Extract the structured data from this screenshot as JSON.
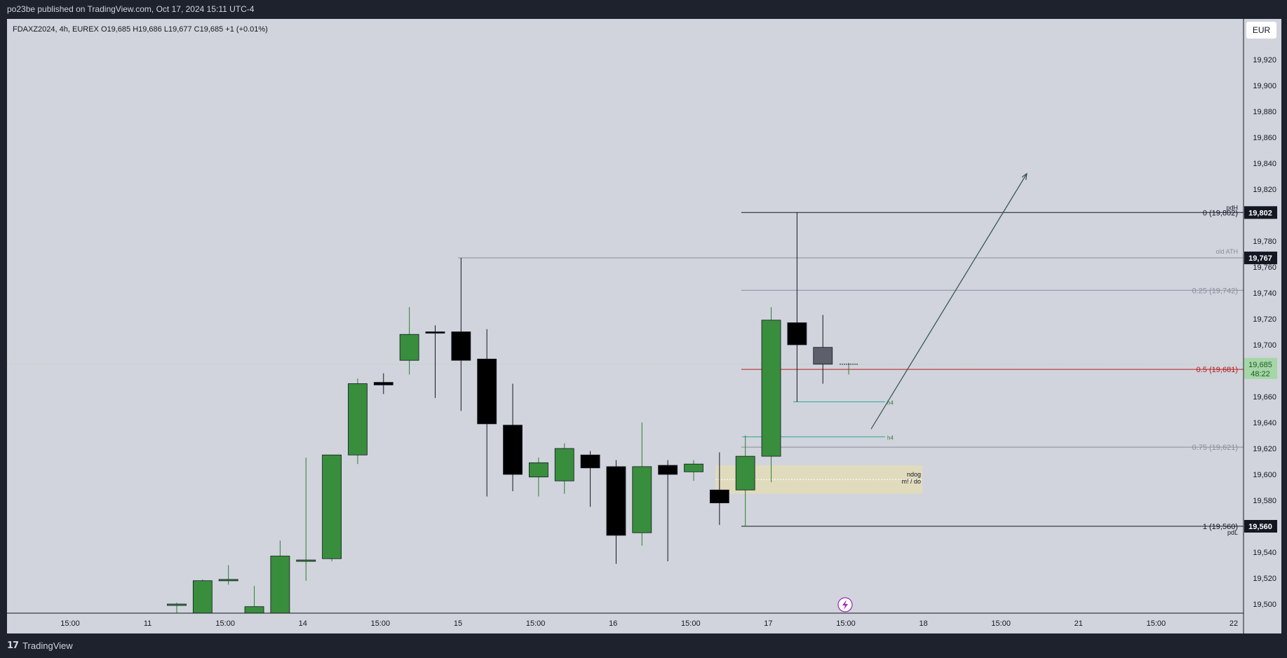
{
  "header": {
    "published_text": "po23be published on TradingView.com, Oct 17, 2024 15:11 UTC-4"
  },
  "footer": {
    "brand": "TradingView",
    "brand_icon": "tradingview-logo-icon"
  },
  "symbol_bar": {
    "text": "FDAXZ2024, 4h, EUREX  O19,685  H19,686  L19,677  C19,685  +1 (+0.01%)"
  },
  "currency": "EUR",
  "colors": {
    "up": "#388e3c",
    "down": "#000000",
    "current": "#5d606b",
    "fib_mid": "#b71c1c",
    "level_line": "#131722",
    "gray_line": "#8a8e99",
    "teal": "#26a69a",
    "fvg_box": "#e4dcb8",
    "arrow": "#2f4f4f",
    "price_up_bg": "#a5d6a7"
  },
  "chart_data": {
    "type": "candlestick",
    "timeframe": "4h",
    "symbol": "FDAXZ2024",
    "y_axis": {
      "min": 19490,
      "max": 19945,
      "ticks": [
        "19,500",
        "19,520",
        "19,540",
        "19,560",
        "19,580",
        "19,600",
        "19,620",
        "19,640",
        "19,660",
        "19,680",
        "19,700",
        "19,720",
        "19,740",
        "19,760",
        "19,780",
        "19,800",
        "19,820",
        "19,840",
        "19,860",
        "19,880",
        "19,900",
        "19,920"
      ]
    },
    "x_axis": {
      "tick_labels": [
        "15:00",
        "11",
        "15:00",
        "14",
        "15:00",
        "15",
        "15:00",
        "16",
        "15:00",
        "17",
        "15:00",
        "18",
        "15:00",
        "21",
        "15:00",
        "22"
      ]
    },
    "candles": [
      {
        "o": 19500,
        "h": 19501,
        "l": 19490,
        "c": 19500
      },
      {
        "o": 19493,
        "h": 19519,
        "l": 19489,
        "c": 19518
      },
      {
        "o": 19519,
        "h": 19530,
        "l": 19515,
        "c": 19519
      },
      {
        "o": 19493,
        "h": 19514,
        "l": 19488,
        "c": 19498
      },
      {
        "o": 19493,
        "h": 19549,
        "l": 19493,
        "c": 19537
      },
      {
        "o": 19534,
        "h": 19613,
        "l": 19518,
        "c": 19534
      },
      {
        "o": 19535,
        "h": 19615,
        "l": 19533,
        "c": 19615
      },
      {
        "o": 19615,
        "h": 19674,
        "l": 19608,
        "c": 19670
      },
      {
        "o": 19671,
        "h": 19678,
        "l": 19662,
        "c": 19669
      },
      {
        "o": 19688,
        "h": 19729,
        "l": 19677,
        "c": 19708
      },
      {
        "o": 19710,
        "h": 19715,
        "l": 19659,
        "c": 19709
      },
      {
        "o": 19710,
        "h": 19767,
        "l": 19649,
        "c": 19688
      },
      {
        "o": 19689,
        "h": 19712,
        "l": 19583,
        "c": 19639
      },
      {
        "o": 19638,
        "h": 19670,
        "l": 19587,
        "c": 19600
      },
      {
        "o": 19598,
        "h": 19613,
        "l": 19583,
        "c": 19609
      },
      {
        "o": 19595,
        "h": 19624,
        "l": 19585,
        "c": 19620
      },
      {
        "o": 19615,
        "h": 19618,
        "l": 19575,
        "c": 19605
      },
      {
        "o": 19606,
        "h": 19611,
        "l": 19531,
        "c": 19553
      },
      {
        "o": 19555,
        "h": 19640,
        "l": 19545,
        "c": 19606
      },
      {
        "o": 19607,
        "h": 19611,
        "l": 19533,
        "c": 19600
      },
      {
        "o": 19602,
        "h": 19611,
        "l": 19595,
        "c": 19608
      },
      {
        "o": 19588,
        "h": 19617,
        "l": 19561,
        "c": 19578
      },
      {
        "o": 19588,
        "h": 19630,
        "l": 19560,
        "c": 19614
      },
      {
        "o": 19614,
        "h": 19729,
        "l": 19594,
        "c": 19719
      },
      {
        "o": 19717,
        "h": 19802,
        "l": 19656,
        "c": 19700
      },
      {
        "o": 19698,
        "h": 19723,
        "l": 19670,
        "c": 19685
      },
      {
        "o": 19685,
        "h": 19686,
        "l": 19677,
        "c": 19685
      }
    ],
    "current_price": "19,685",
    "countdown": "48:22",
    "levels": [
      {
        "price": 19802,
        "label": "0 (19,802)",
        "tag": "pdH",
        "badge": "19,802"
      },
      {
        "price": 19767,
        "label": "old ATH",
        "badge": "19,767"
      },
      {
        "price": 19742,
        "label": "0.25 (19,742)"
      },
      {
        "price": 19681,
        "label": "0.5 (19,681)"
      },
      {
        "price": 19621,
        "label": "0.75 (19,621)"
      },
      {
        "price": 19560,
        "label": "1 (19,560)",
        "tag": "pdL",
        "badge": "19,560"
      }
    ],
    "h4_labels": [
      "h4",
      "h4"
    ],
    "zone": {
      "top": 19607,
      "bottom": 19585,
      "labels": [
        "ndog",
        "m! / do"
      ]
    }
  }
}
